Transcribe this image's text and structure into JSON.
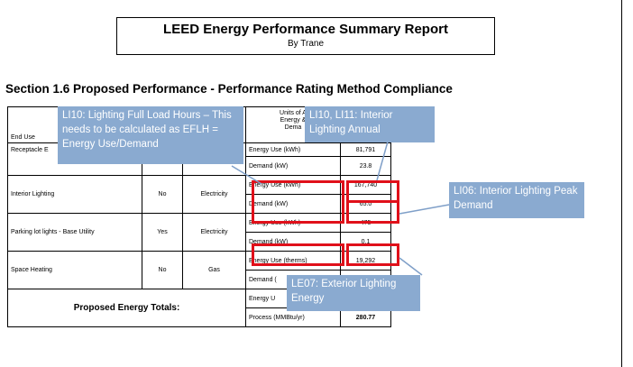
{
  "report": {
    "title": "LEED Energy Performance Summary Report",
    "subtitle": "By Trane"
  },
  "section": {
    "heading": "Section 1.6 Proposed Performance - Performance Rating Method Compliance"
  },
  "table": {
    "header": {
      "end_use": "End Use",
      "fuel_partial": "n",
      "units_line1": "Units of A",
      "units_line2": "Energy &",
      "units_line3": "Dema"
    },
    "rows": [
      {
        "end_use": "Receptacle E",
        "process": "",
        "fuel": "",
        "unit1": "Energy Use (kWh)",
        "val1": "81,791",
        "unit2": "Demand (kW)",
        "val2": "23.8"
      },
      {
        "end_use": "Interior Lighting",
        "process": "No",
        "fuel": "Electricity",
        "unit1": "Energy Use (kWh)",
        "val1": "167,740",
        "unit2": "Demand (kW)",
        "val2": "65.0"
      },
      {
        "end_use": "Parking lot lights - Base Utility",
        "process": "Yes",
        "fuel": "Electricity",
        "unit1": "Energy Use (kWh)",
        "val1": "475",
        "unit2": "Demand (kW)",
        "val2": "0.1"
      },
      {
        "end_use": "Space Heating",
        "process": "No",
        "fuel": "Gas",
        "unit1": "Energy Use (therms)",
        "val1": "19,292",
        "unit2": "Demand (",
        "val2": ""
      }
    ],
    "totals": {
      "label": "Proposed Energy Totals:",
      "unit1": "Energy U",
      "val1": "",
      "unit2": "Process  (MMBtu/yr)",
      "val2": "280.77"
    }
  },
  "callouts": {
    "li10_efl": "LI10: Lighting Full Load Hours – This needs to be calculated as EFLH = Energy Use/Demand",
    "li10_li11": "LI10, LI11: Interior Lighting Annual",
    "li06": "LI06: Interior Lighting Peak Demand",
    "le07": "LE07: Exterior Lighting Energy"
  },
  "colors": {
    "callout_bg": "#8aaad0",
    "highlight_border": "#e0101a",
    "leader_line": "#7f9fc8"
  }
}
